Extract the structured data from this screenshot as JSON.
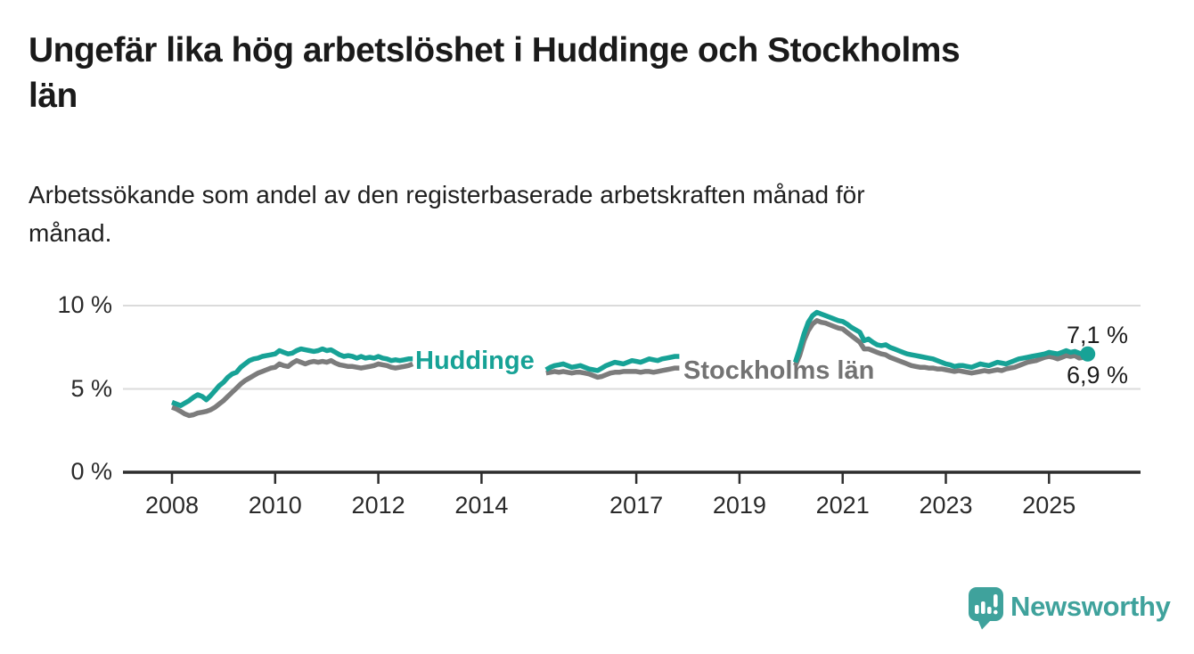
{
  "header": {
    "title_lines": [
      "Ungefär lika hög arbetslöshet i Huddinge och Stockholms",
      "län"
    ],
    "subtitle_lines": [
      "Arbetssökande som andel av den registerbaserade arbetskraften månad för",
      "månad."
    ]
  },
  "branding": {
    "logo_text": "Newsworthy",
    "logo_color": "#3fa29c"
  },
  "chart_data": {
    "type": "line",
    "title": "Ungefär lika hög arbetslöshet i Huddinge och Stockholms län",
    "subtitle": "Arbetssökande som andel av den registerbaserade arbetskraften månad för månad.",
    "x_start_year": 2008,
    "points_per_year": 12,
    "ylim": [
      0,
      10.7
    ],
    "grid": "horizontal",
    "legend_position": "inline-labels",
    "y_ticks": [
      {
        "label": "0 %",
        "value": 0
      },
      {
        "label": "5 %",
        "value": 5
      },
      {
        "label": "10 %",
        "value": 10
      }
    ],
    "x_ticks": [
      {
        "label": "2008",
        "year": 2008
      },
      {
        "label": "2010",
        "year": 2010
      },
      {
        "label": "2012",
        "year": 2012
      },
      {
        "label": "2014",
        "year": 2014
      },
      {
        "label": "2017",
        "year": 2017
      },
      {
        "label": "2019",
        "year": 2019
      },
      {
        "label": "2021",
        "year": 2021
      },
      {
        "label": "2023",
        "year": 2023
      },
      {
        "label": "2025",
        "year": 2025
      }
    ],
    "series": [
      {
        "name": "Stockholms län",
        "inline_label": "Stockholms län",
        "end_label": "6,9 %",
        "end_value": 6.9,
        "color": "#7c7c7c",
        "end_dot": false,
        "values": [
          3.9,
          3.8,
          3.65,
          3.5,
          3.4,
          3.45,
          3.55,
          3.6,
          3.65,
          3.75,
          3.9,
          4.1,
          4.3,
          4.55,
          4.8,
          5.05,
          5.3,
          5.5,
          5.65,
          5.8,
          5.95,
          6.05,
          6.15,
          6.25,
          6.3,
          6.5,
          6.4,
          6.35,
          6.55,
          6.7,
          6.6,
          6.5,
          6.6,
          6.65,
          6.6,
          6.65,
          6.6,
          6.7,
          6.55,
          6.45,
          6.4,
          6.35,
          6.35,
          6.3,
          6.25,
          6.3,
          6.35,
          6.4,
          6.5,
          6.45,
          6.4,
          6.3,
          6.25,
          6.3,
          6.35,
          6.4,
          6.5,
          null,
          null,
          null,
          null,
          null,
          null,
          null,
          null,
          null,
          null,
          null,
          null,
          null,
          null,
          null,
          null,
          null,
          null,
          null,
          null,
          null,
          null,
          null,
          null,
          null,
          null,
          null,
          null,
          null,
          null,
          5.95,
          6.0,
          6.05,
          6.0,
          6.05,
          6.0,
          5.95,
          6.0,
          6.0,
          5.95,
          5.9,
          5.8,
          5.7,
          5.75,
          5.85,
          5.95,
          6.0,
          6.0,
          6.05,
          6.05,
          6.05,
          6.05,
          6.0,
          6.05,
          6.05,
          6.0,
          6.05,
          6.1,
          6.15,
          6.2,
          6.25,
          6.25,
          null,
          null,
          null,
          null,
          null,
          null,
          null,
          null,
          null,
          null,
          null,
          null,
          null,
          null,
          null,
          null,
          null,
          null,
          null,
          null,
          null,
          null,
          null,
          null,
          null,
          null,
          6.4,
          7.0,
          7.9,
          8.5,
          8.9,
          9.1,
          9.0,
          8.95,
          8.85,
          8.75,
          8.65,
          8.6,
          8.4,
          8.2,
          8.0,
          7.8,
          7.4,
          7.4,
          7.3,
          7.2,
          7.1,
          7.05,
          6.9,
          6.8,
          6.7,
          6.6,
          6.5,
          6.4,
          6.35,
          6.3,
          6.3,
          6.25,
          6.25,
          6.2,
          6.2,
          6.15,
          6.1,
          6.05,
          6.1,
          6.05,
          6.0,
          5.95,
          6.0,
          6.05,
          6.1,
          6.05,
          6.1,
          6.15,
          6.1,
          6.2,
          6.25,
          6.3,
          6.4,
          6.5,
          6.6,
          6.65,
          6.7,
          6.8,
          6.9,
          6.95,
          6.9,
          6.8,
          6.9,
          7.0,
          6.95,
          7.0,
          6.85,
          6.9,
          6.9
        ]
      },
      {
        "name": "Huddinge",
        "inline_label": "Huddinge",
        "end_label": "7,1 %",
        "end_value": 7.1,
        "color": "#17a296",
        "end_dot": true,
        "values": [
          4.2,
          4.1,
          4.0,
          4.15,
          4.3,
          4.5,
          4.65,
          4.55,
          4.35,
          4.6,
          4.9,
          5.2,
          5.4,
          5.7,
          5.9,
          6.0,
          6.3,
          6.5,
          6.7,
          6.8,
          6.85,
          6.95,
          7.0,
          7.05,
          7.1,
          7.3,
          7.2,
          7.1,
          7.15,
          7.3,
          7.4,
          7.35,
          7.3,
          7.25,
          7.3,
          7.4,
          7.3,
          7.35,
          7.2,
          7.05,
          6.95,
          7.0,
          6.95,
          6.85,
          6.95,
          6.85,
          6.9,
          6.85,
          6.95,
          6.85,
          6.8,
          6.7,
          6.75,
          6.7,
          6.75,
          6.8,
          6.8,
          null,
          null,
          null,
          null,
          null,
          null,
          null,
          null,
          null,
          null,
          null,
          null,
          null,
          null,
          null,
          null,
          null,
          null,
          null,
          null,
          null,
          null,
          null,
          null,
          null,
          null,
          null,
          null,
          null,
          null,
          6.15,
          6.3,
          6.4,
          6.45,
          6.5,
          6.4,
          6.3,
          6.35,
          6.4,
          6.3,
          6.2,
          6.15,
          6.1,
          6.25,
          6.4,
          6.5,
          6.6,
          6.55,
          6.5,
          6.6,
          6.7,
          6.65,
          6.6,
          6.7,
          6.8,
          6.75,
          6.7,
          6.8,
          6.85,
          6.9,
          6.95,
          6.95,
          null,
          null,
          null,
          null,
          null,
          null,
          null,
          null,
          null,
          null,
          null,
          null,
          null,
          null,
          null,
          null,
          null,
          null,
          null,
          null,
          null,
          null,
          null,
          null,
          null,
          null,
          6.6,
          7.4,
          8.3,
          9.0,
          9.4,
          9.6,
          9.5,
          9.4,
          9.3,
          9.2,
          9.1,
          9.05,
          8.9,
          8.7,
          8.55,
          8.4,
          7.9,
          8.0,
          7.8,
          7.65,
          7.6,
          7.65,
          7.5,
          7.4,
          7.3,
          7.2,
          7.1,
          7.05,
          7.0,
          6.95,
          6.9,
          6.85,
          6.8,
          6.7,
          6.6,
          6.5,
          6.45,
          6.35,
          6.4,
          6.4,
          6.35,
          6.3,
          6.4,
          6.5,
          6.45,
          6.4,
          6.5,
          6.6,
          6.55,
          6.5,
          6.6,
          6.7,
          6.8,
          6.85,
          6.9,
          6.95,
          7.0,
          7.05,
          7.1,
          7.2,
          7.15,
          7.1,
          7.2,
          7.3,
          7.2,
          7.25,
          7.15,
          7.1,
          7.1
        ]
      }
    ],
    "style": {
      "axis_color": "#2d2d2d",
      "gridline_color": "#dbdbdb",
      "line_width": 5.5
    }
  }
}
